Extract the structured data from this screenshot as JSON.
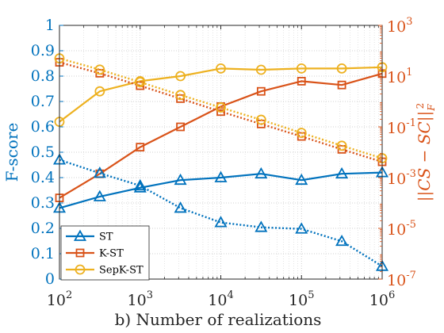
{
  "chart_data": {
    "type": "line",
    "x_scale": "log",
    "x": [
      100,
      316,
      1000,
      3160,
      10000,
      31600,
      100000,
      316000,
      1000000
    ],
    "xlim": [
      100,
      1000000
    ],
    "x_ticks": [
      {
        "value": 100,
        "base": "10",
        "exp": "2"
      },
      {
        "value": 1000,
        "base": "10",
        "exp": "3"
      },
      {
        "value": 10000,
        "base": "10",
        "exp": "4"
      },
      {
        "value": 100000,
        "base": "10",
        "exp": "5"
      },
      {
        "value": 1000000,
        "base": "10",
        "exp": "6"
      }
    ],
    "xlabel": "b) Number of realizations",
    "ylabel_left": "F-score",
    "ylim_left": [
      0,
      1
    ],
    "yticks_left": [
      "0",
      "0.1",
      "0.2",
      "0.3",
      "0.4",
      "0.5",
      "0.6",
      "0.7",
      "0.8",
      "0.9",
      "1"
    ],
    "ylabel_right": "||CS − SC||F²",
    "y_scale_right": "log",
    "ylim_right": [
      1e-07,
      1000
    ],
    "yticks_right": [
      {
        "value": 1e-07,
        "base": "10",
        "exp": "-7"
      },
      {
        "value": 1e-05,
        "base": "10",
        "exp": "-5"
      },
      {
        "value": 0.001,
        "base": "10",
        "exp": "-3"
      },
      {
        "value": 0.1,
        "base": "10",
        "exp": "-1"
      },
      {
        "value": 10,
        "base": "10",
        "exp": "1"
      },
      {
        "value": 1000,
        "base": "10",
        "exp": "3"
      }
    ],
    "grid": true,
    "legend_position": "bottom-left",
    "colors": {
      "left_axis": "#0072BD",
      "right_axis": "#D95319"
    },
    "series": [
      {
        "name": "ST",
        "color": "#0072BD",
        "marker": "triangle",
        "axis": "left",
        "style": "solid",
        "values": [
          0.28,
          0.325,
          0.36,
          0.39,
          0.4,
          0.415,
          0.39,
          0.415,
          0.42
        ]
      },
      {
        "name": "K-ST",
        "color": "#D95319",
        "marker": "square",
        "axis": "left",
        "style": "solid",
        "values": [
          0.32,
          0.415,
          0.52,
          0.6,
          0.68,
          0.74,
          0.78,
          0.765,
          0.81
        ]
      },
      {
        "name": "SepK-ST",
        "color": "#EDB120",
        "marker": "circle",
        "axis": "left",
        "style": "solid",
        "values": [
          0.62,
          0.74,
          0.78,
          0.8,
          0.83,
          0.825,
          0.83,
          0.83,
          0.835
        ]
      },
      {
        "color": "#0072BD",
        "marker": "triangle",
        "axis": "right",
        "style": "dotted",
        "values": [
          0.005,
          0.0015,
          0.00048,
          6.3e-05,
          1.7e-05,
          1.1e-05,
          9.5e-06,
          3.1e-06,
          3.2e-07
        ]
      },
      {
        "color": "#D95319",
        "marker": "square",
        "axis": "right",
        "style": "dotted",
        "values": [
          35,
          13,
          4.2,
          1.3,
          0.4,
          0.13,
          0.042,
          0.013,
          0.0042
        ]
      },
      {
        "color": "#EDB120",
        "marker": "circle",
        "axis": "right",
        "style": "dotted",
        "values": [
          50,
          18,
          5.8,
          1.8,
          0.58,
          0.19,
          0.058,
          0.018,
          0.0058
        ]
      }
    ]
  }
}
